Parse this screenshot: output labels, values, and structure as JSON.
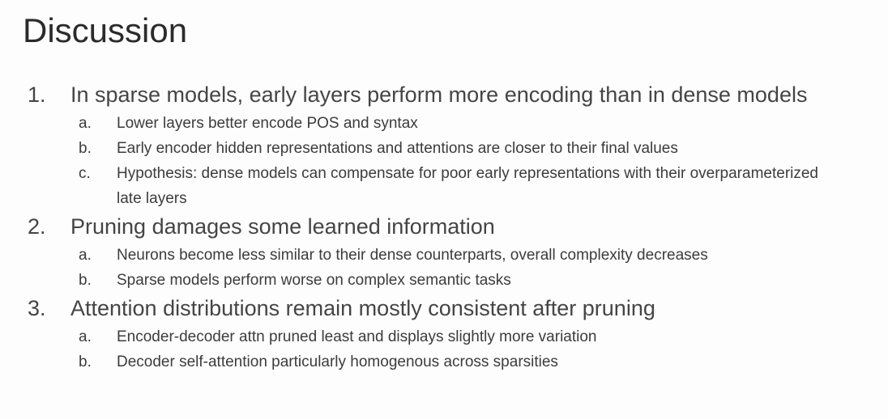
{
  "title": "Discussion",
  "items": [
    {
      "number": "1.",
      "text": "In sparse models, early layers perform more encoding than in dense models",
      "subs": [
        {
          "letter": "a.",
          "text": "Lower layers better encode POS and syntax"
        },
        {
          "letter": "b.",
          "text": "Early encoder hidden representations and attentions are closer to their final values"
        },
        {
          "letter": "c.",
          "text": "Hypothesis: dense models can compensate for poor early representations with their overparameterized late layers"
        }
      ]
    },
    {
      "number": "2.",
      "text": "Pruning damages some learned information",
      "subs": [
        {
          "letter": "a.",
          "text": "Neurons become less similar to their dense counterparts, overall complexity decreases"
        },
        {
          "letter": "b.",
          "text": "Sparse models perform worse on complex semantic tasks"
        }
      ]
    },
    {
      "number": "3.",
      "text": "Attention distributions remain mostly consistent after pruning",
      "subs": [
        {
          "letter": "a.",
          "text": "Encoder-decoder attn pruned least and displays slightly more variation"
        },
        {
          "letter": "b.",
          "text": "Decoder self-attention particularly homogenous across sparsities"
        }
      ]
    }
  ]
}
